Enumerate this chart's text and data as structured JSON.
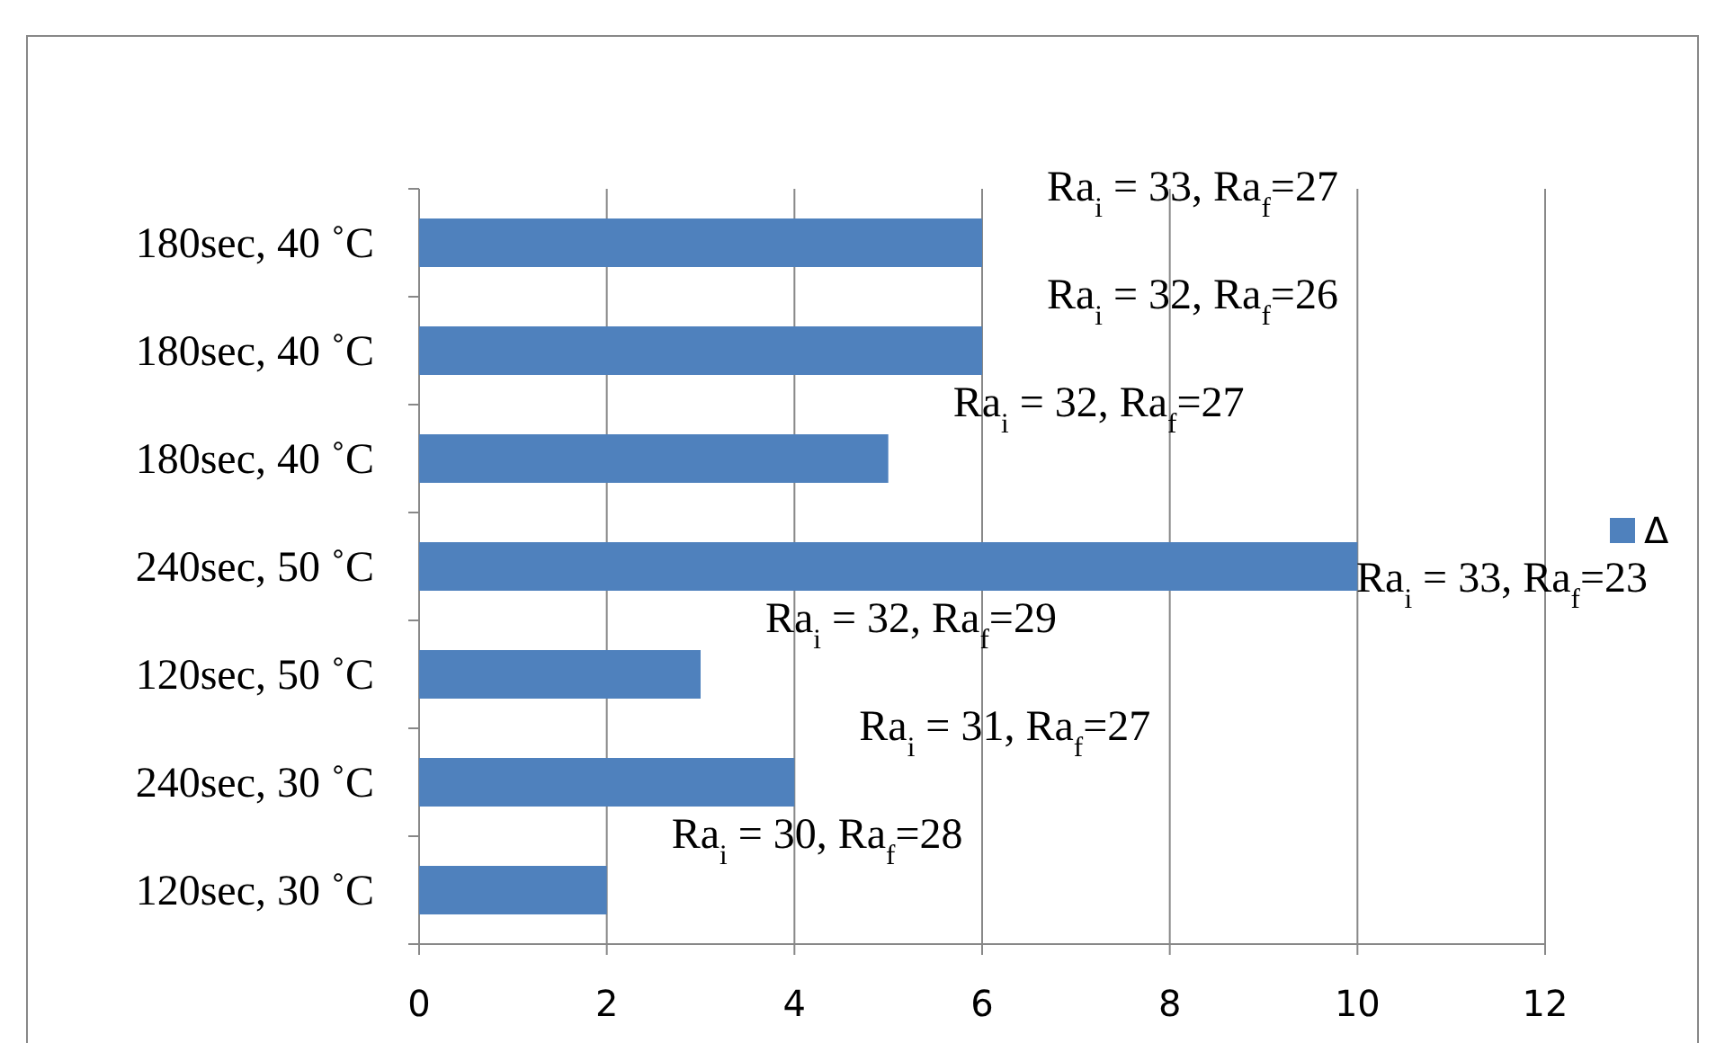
{
  "chart_data": {
    "type": "bar",
    "orientation": "horizontal",
    "categories": [
      "180sec, 40 ˚C",
      "180sec, 40 ˚C",
      "180sec, 40 ˚C",
      "240sec, 50 ˚C",
      "120sec, 50 ˚C",
      "240sec, 30 ˚C",
      "120sec, 30 ˚C"
    ],
    "series": [
      {
        "name": "Δ",
        "color": "#4f81bd",
        "values": [
          6,
          6,
          5,
          10,
          3,
          4,
          2
        ],
        "value_labels": [
          "Ra$_{i}$ = 33, Ra$_{f}$=27",
          "Ra$_{i}$ = 32, Ra$_{f}$=26",
          "Ra$_{i}$ = 32, Ra$_{f}$=27",
          "Ra$_{i}$ = 33, Ra$_{f}$=23",
          "Ra$_{i}$ = 32, Ra$_{f}$=29",
          "Ra$_{i}$ = 31, Ra$_{f}$=27",
          "Ra$_{i}$ = 30, Ra$_{f}$=28"
        ]
      }
    ],
    "xlim": [
      0,
      12
    ],
    "xticks": [
      0,
      2,
      4,
      6,
      8,
      10,
      12
    ],
    "grid": "x",
    "legend": "right"
  }
}
